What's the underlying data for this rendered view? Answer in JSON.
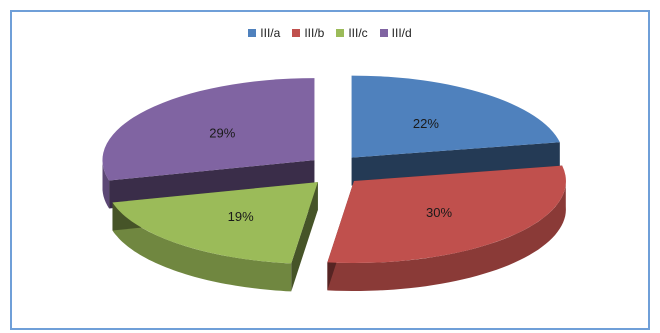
{
  "chart_data": {
    "type": "pie",
    "title": "",
    "legend_position": "top",
    "categories": [
      "III/a",
      "III/b",
      "III/c",
      "III/d"
    ],
    "values": [
      22,
      30,
      19,
      29
    ],
    "labels": [
      "22%",
      "30%",
      "19%",
      "29%"
    ],
    "colors": [
      "#4f81bd",
      "#c0504d",
      "#9bbb59",
      "#8064a2"
    ]
  }
}
